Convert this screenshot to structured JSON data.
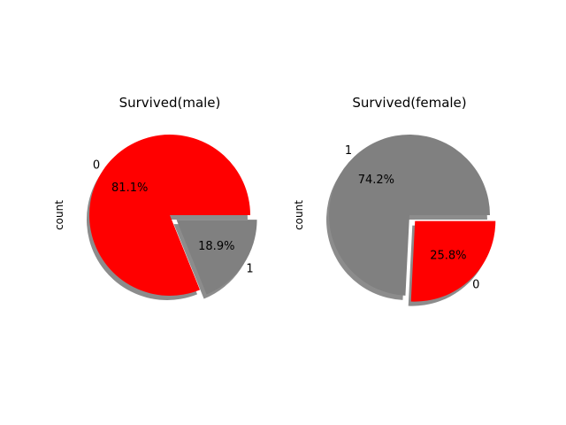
{
  "chart_data": [
    {
      "type": "pie",
      "title": "Survived(male)",
      "ylabel": "count",
      "labels": [
        "0",
        "1"
      ],
      "values": [
        81.1,
        18.9
      ],
      "percent_labels": [
        "81.1%",
        "18.9%"
      ],
      "colors": [
        "#ff0000",
        "#808080"
      ],
      "explode": [
        0,
        0.1
      ],
      "shadow": true
    },
    {
      "type": "pie",
      "title": "Survived(female)",
      "ylabel": "count",
      "labels": [
        "1",
        "0"
      ],
      "values": [
        74.2,
        25.8
      ],
      "percent_labels": [
        "74.2%",
        "25.8%"
      ],
      "colors": [
        "#808080",
        "#ff0000"
      ],
      "explode": [
        0,
        0.1
      ],
      "shadow": true
    }
  ]
}
